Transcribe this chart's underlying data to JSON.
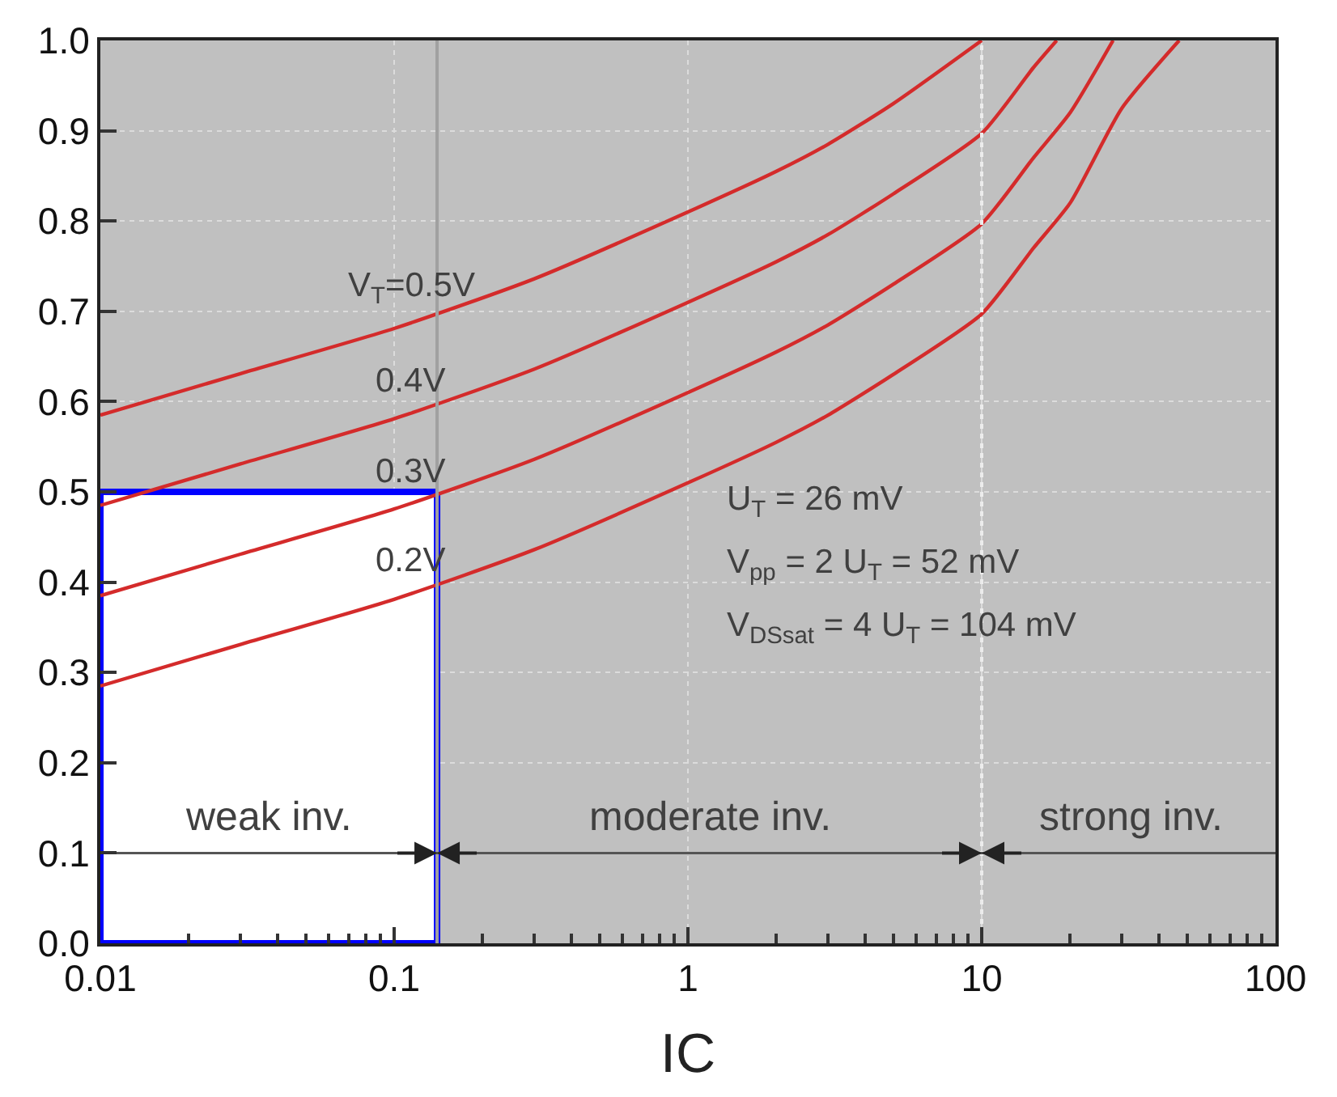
{
  "chart_data": {
    "type": "line",
    "xlabel": "IC",
    "series": [
      {
        "name": "V$_{T}$=0.5V",
        "color": "#d42b2b",
        "x": [
          0.01,
          0.03,
          0.1,
          0.3,
          1,
          2,
          3,
          5,
          10
        ],
        "values": [
          0.585,
          0.631,
          0.681,
          0.736,
          0.81,
          0.855,
          0.885,
          0.93,
          1.0
        ]
      },
      {
        "name": "0.4V",
        "color": "#d42b2b",
        "x": [
          0.01,
          0.03,
          0.1,
          0.3,
          1,
          2,
          3,
          5,
          10,
          15,
          18
        ],
        "values": [
          0.485,
          0.531,
          0.581,
          0.636,
          0.71,
          0.755,
          0.785,
          0.83,
          0.897,
          0.97,
          1.0
        ]
      },
      {
        "name": "0.3V",
        "color": "#d42b2b",
        "x": [
          0.01,
          0.03,
          0.1,
          0.3,
          1,
          2,
          3,
          5,
          10,
          15,
          20,
          28
        ],
        "values": [
          0.385,
          0.431,
          0.481,
          0.536,
          0.61,
          0.655,
          0.685,
          0.73,
          0.797,
          0.87,
          0.92,
          1.0
        ]
      },
      {
        "name": "0.2V",
        "color": "#d42b2b",
        "x": [
          0.01,
          0.03,
          0.1,
          0.3,
          1,
          2,
          3,
          5,
          10,
          15,
          20,
          30,
          47
        ],
        "values": [
          0.285,
          0.331,
          0.381,
          0.436,
          0.51,
          0.555,
          0.585,
          0.63,
          0.697,
          0.77,
          0.82,
          0.925,
          1.0
        ]
      },
      {
        "type": "area",
        "color": "#0000ff",
        "x": [
          0.01,
          0.14
        ],
        "values": [
          0.5,
          0.5
        ]
      }
    ],
    "log": "x",
    "xlim": [
      0.01,
      100
    ],
    "xticks": [
      0.01,
      0.1,
      1,
      10,
      100
    ],
    "ylim": [
      0,
      1
    ],
    "yticks": [
      {
        "value": 0,
        "label": "0.0"
      },
      {
        "value": 0.1,
        "label": "0.1"
      },
      {
        "value": 0.2,
        "label": "0.2"
      },
      {
        "value": 0.3,
        "label": "0.3"
      },
      {
        "value": 0.4,
        "label": "0.4"
      },
      {
        "value": 0.5,
        "label": "0.5"
      },
      {
        "value": 0.6,
        "label": "0.6"
      },
      {
        "value": 0.7,
        "label": "0.7"
      },
      {
        "value": 0.8,
        "label": "0.8"
      },
      {
        "value": 0.9,
        "label": "0.9"
      },
      {
        "value": 1,
        "label": "1.0"
      }
    ],
    "grid": true,
    "line_style": "solid",
    "ref_lines": [
      {
        "axis": "x",
        "value": 0.14,
        "color": "#a0a0a0",
        "line_style": "solid"
      },
      {
        "axis": "x",
        "value": 10,
        "color": "#ececec",
        "line_style": "dotted"
      },
      {
        "axis": "y",
        "value": 0.1,
        "color": "#555555",
        "line_style": "solid"
      }
    ],
    "annotations": [
      {
        "text": "weak inv.",
        "x": 0.037,
        "y": 0.1
      },
      {
        "text": "moderate inv.",
        "x": 1.2,
        "y": 0.1
      },
      {
        "text": "strong inv.",
        "x": 32,
        "y": 0.1
      },
      "U$_{T}$ = 26 mV",
      "V$_{pp}$ = 2 U$_{T}$ = 52 mV",
      "V$_{DSsat}$ = 4 U$_{T}$ = 104 mV"
    ]
  }
}
